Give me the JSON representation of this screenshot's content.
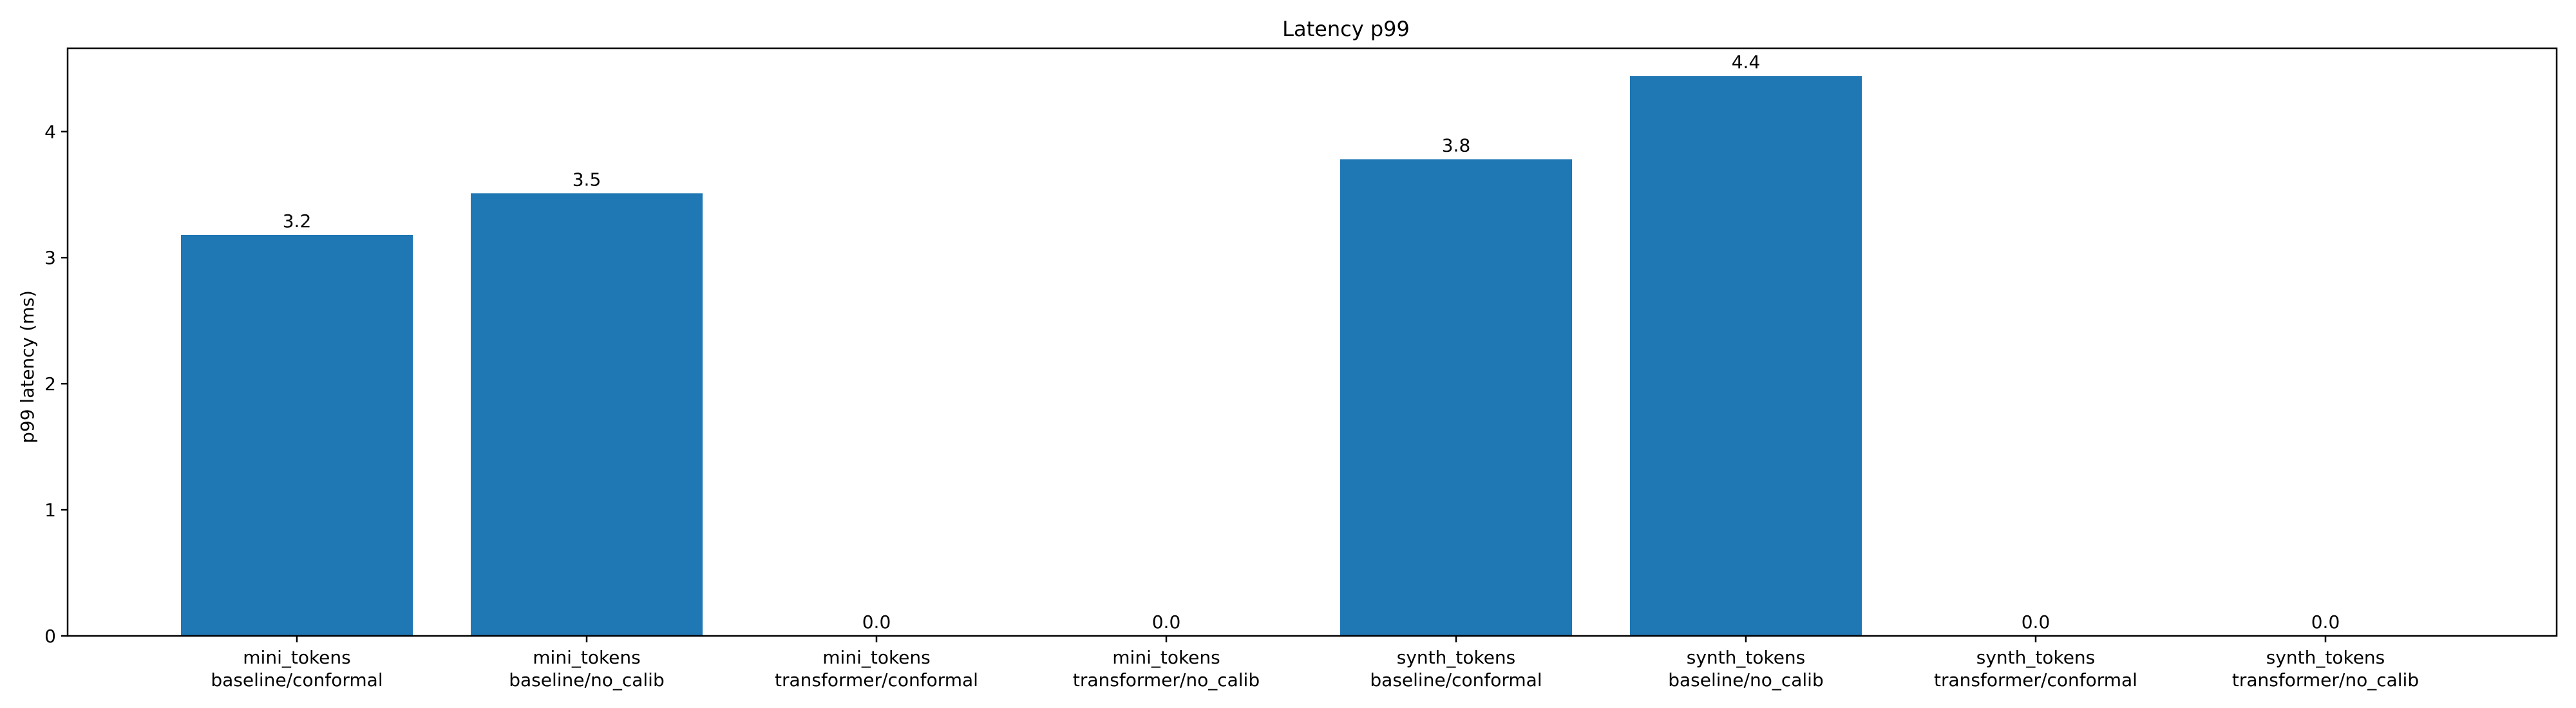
{
  "chart_data": {
    "type": "bar",
    "title": "Latency p99",
    "xlabel": "",
    "ylabel": "p99 latency (ms)",
    "categories": [
      [
        "mini_tokens",
        "baseline/conformal"
      ],
      [
        "mini_tokens",
        "baseline/no_calib"
      ],
      [
        "mini_tokens",
        "transformer/conformal"
      ],
      [
        "mini_tokens",
        "transformer/no_calib"
      ],
      [
        "synth_tokens",
        "baseline/conformal"
      ],
      [
        "synth_tokens",
        "baseline/no_calib"
      ],
      [
        "synth_tokens",
        "transformer/conformal"
      ],
      [
        "synth_tokens",
        "transformer/no_calib"
      ]
    ],
    "values": [
      3.18,
      3.51,
      0.0,
      0.0,
      3.78,
      4.44,
      0.0,
      0.0
    ],
    "data_labels": [
      "3.2",
      "3.5",
      "0.0",
      "0.0",
      "3.8",
      "4.4",
      "0.0",
      "0.0"
    ],
    "ylim": [
      0,
      4.66
    ],
    "yticks": [
      0,
      1,
      2,
      3,
      4
    ],
    "bar_color": "#1f77b4",
    "grid": false,
    "legend": false
  }
}
